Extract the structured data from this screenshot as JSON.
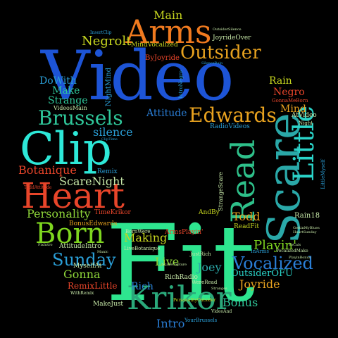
{
  "words": [
    {
      "text": "Video",
      "color": "#1d54d6"
    },
    {
      "text": "Fit",
      "color": "#2ee58f"
    },
    {
      "text": "Clip",
      "color": "#2de8d8"
    },
    {
      "text": "Heart",
      "color": "#e8452a"
    },
    {
      "text": "Arms",
      "color": "#f07a1f"
    },
    {
      "text": "Krikor",
      "color": "#2aa87a"
    },
    {
      "text": "Born",
      "color": "#7ed61f"
    },
    {
      "text": "Scare",
      "color": "#2aa8a8"
    },
    {
      "text": "Read",
      "color": "#2ec08a"
    },
    {
      "text": "Little",
      "color": "#2ad3c8"
    },
    {
      "text": "Outsider",
      "color": "#e8a21f"
    },
    {
      "text": "Brussels",
      "color": "#2fc79a"
    },
    {
      "text": "Edwards",
      "color": "#e8a21f"
    },
    {
      "text": "Vocalized",
      "color": "#2a7ed6"
    },
    {
      "text": "Sunday",
      "color": "#2a9ed6"
    },
    {
      "text": "Negrolt",
      "color": "#c7d61f"
    },
    {
      "text": "Main",
      "color": "#c7d61f"
    },
    {
      "text": "Botanique",
      "color": "#e8452a"
    },
    {
      "text": "Personality",
      "color": "#8fd63a"
    },
    {
      "text": "ScareNight",
      "color": "#c7e8a8"
    },
    {
      "text": "silence",
      "color": "#2a9ed6"
    },
    {
      "text": "Attitude",
      "color": "#2a7ed6"
    },
    {
      "text": "Playin'",
      "color": "#7ed61f"
    },
    {
      "text": "Joyride",
      "color": "#e8a21f"
    },
    {
      "text": "Joey",
      "color": "#2aa8a8"
    },
    {
      "text": "Bonus",
      "color": "#2fc79a"
    },
    {
      "text": "Intro",
      "color": "#2a7ed6"
    },
    {
      "text": "Rich",
      "color": "#2a7ed6"
    },
    {
      "text": "Gonna",
      "color": "#8fd63a"
    },
    {
      "text": "Making",
      "color": "#c7d61f"
    },
    {
      "text": "Live",
      "color": "#8fd63a"
    },
    {
      "text": "Todd",
      "color": "#e8a21f"
    },
    {
      "text": "Mind",
      "color": "#e8a21f"
    },
    {
      "text": "Negro",
      "color": "#e8452a"
    },
    {
      "text": "Rain",
      "color": "#c7d61f"
    },
    {
      "text": "DoWith",
      "color": "#2a9ed6"
    },
    {
      "text": "Make",
      "color": "#2fc79a"
    },
    {
      "text": "Strange",
      "color": "#2fc79a"
    },
    {
      "text": "VideosMain",
      "color": "#c7e8a8"
    },
    {
      "text": "NightMind",
      "color": "#2a9ed6"
    },
    {
      "text": "ByJoyride",
      "color": "#e8452a"
    },
    {
      "text": "MindVocalized",
      "color": "#c7d61f"
    },
    {
      "text": "RadioVideos",
      "color": "#2a9ed6"
    },
    {
      "text": "OutsiderOFU",
      "color": "#2ad3c8"
    },
    {
      "text": "RemixLittle",
      "color": "#e8452a"
    },
    {
      "text": "MyselfAt",
      "color": "#c7e8a8"
    },
    {
      "text": "AttitudeIntro",
      "color": "#c7e8a8"
    },
    {
      "text": "TimeKrikor",
      "color": "#e8452a"
    },
    {
      "text": "BonusEdwards",
      "color": "#e8a21f"
    },
    {
      "text": "Remix",
      "color": "#2a9ed6"
    },
    {
      "text": "MakeJust",
      "color": "#c7e8a8"
    },
    {
      "text": "RichRadio",
      "color": "#c7e8a8"
    },
    {
      "text": "WereRead",
      "color": "#c7e8a8"
    },
    {
      "text": "AndBy",
      "color": "#c7d61f"
    },
    {
      "text": "ReadFit",
      "color": "#c7d61f"
    },
    {
      "text": "Rain18",
      "color": "#c7e8a8"
    },
    {
      "text": "JoyrideOver",
      "color": "#c7e8a8"
    },
    {
      "text": "IntroNegro",
      "color": "#2a9ed6"
    },
    {
      "text": "StrangeScare",
      "color": "#c7e8a8"
    },
    {
      "text": "ArmsPlayin'",
      "color": "#e8452a"
    },
    {
      "text": "LiveBotanique",
      "color": "#c7e8a8"
    },
    {
      "text": "JustRich",
      "color": "#c7e8a8"
    },
    {
      "text": "AtVideo",
      "color": "#c7e8a8"
    },
    {
      "text": "GonnaMeBorn",
      "color": "#e8452a"
    },
    {
      "text": "Night",
      "color": "#c7e8a8"
    },
    {
      "text": "BornWere",
      "color": "#c7e8a8"
    },
    {
      "text": "InArms",
      "color": "#2a9ed6"
    },
    {
      "text": "VocalizedMake",
      "color": "#c7e8a8"
    },
    {
      "text": "WithRemix",
      "color": "#c7e8a8"
    },
    {
      "text": "YourBrussels",
      "color": "#2a9ed6"
    },
    {
      "text": "VideoAnd",
      "color": "#c7e8a8"
    },
    {
      "text": "PersonalityOutsider",
      "color": "#c7d61f"
    },
    {
      "text": "LittleMyself",
      "color": "#2a9ed6"
    },
    {
      "text": "ClipTime",
      "color": "#2a9ed6"
    },
    {
      "text": "ToddAttitude",
      "color": "#e8452a"
    },
    {
      "text": "InsertClip",
      "color": "#2a9ed6"
    },
    {
      "text": "OutsiderSilence",
      "color": "#c7e8a8"
    },
    {
      "text": "SilenceRain",
      "color": "#2a9ed6"
    },
    {
      "text": "HeartSunday",
      "color": "#c7e8a8"
    },
    {
      "text": "GettinMyBlues",
      "color": "#c7e8a8"
    },
    {
      "text": "FixIntro",
      "color": "#c7e8a8"
    },
    {
      "text": "VoCals",
      "color": "#c7e8a8"
    },
    {
      "text": "PlayinBonus",
      "color": "#c7e8a8"
    },
    {
      "text": "ScareCapture",
      "color": "#c7e8a8"
    },
    {
      "text": "Stranges",
      "color": "#c7e8a8"
    },
    {
      "text": "Manic",
      "color": "#c7e8a8"
    }
  ]
}
